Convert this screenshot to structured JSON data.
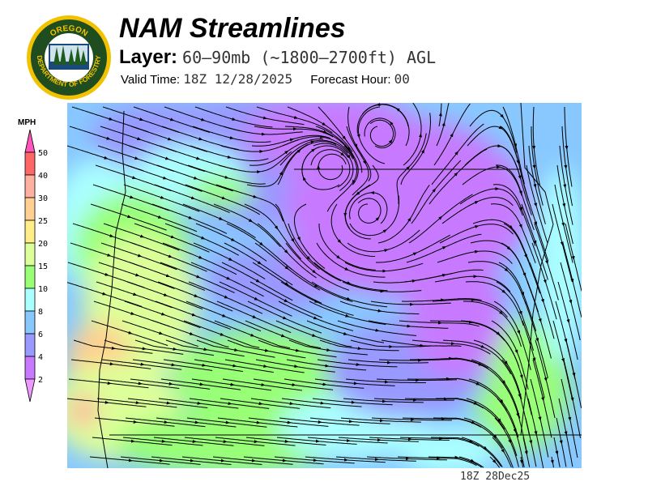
{
  "header": {
    "logo_text": [
      "OREGON",
      "DEPARTMENT OF FORESTRY"
    ],
    "title": "NAM Streamlines",
    "layer_label": "Layer:",
    "layer_value": "60–90mb (~1800–2700ft) AGL",
    "valid_label": "Valid Time:",
    "valid_value": "18Z  12/28/2025",
    "forecast_label": "Forecast Hour:",
    "forecast_value": "00"
  },
  "legend": {
    "unit": "MPH",
    "ticks": [
      "50",
      "40",
      "30",
      "25",
      "20",
      "15",
      "10",
      "8",
      "6",
      "4",
      "2"
    ],
    "colors": {
      "above_50": "#ff55bb",
      "40_50": "#ff6666",
      "30_40": "#ffb0a0",
      "25_30": "#ffd090",
      "20_25": "#ffee88",
      "15_20": "#ddff99",
      "10_15": "#99ff77",
      "8_10": "#aaffff",
      "6_8": "#88c8ff",
      "4_6": "#9999ff",
      "2_4": "#c77aff",
      "below_2": "#ee99ff"
    }
  },
  "map": {
    "field": "wind speed with streamlines",
    "region": "Oregon"
  },
  "footer": {
    "timestamp": "18Z 28Dec25"
  }
}
